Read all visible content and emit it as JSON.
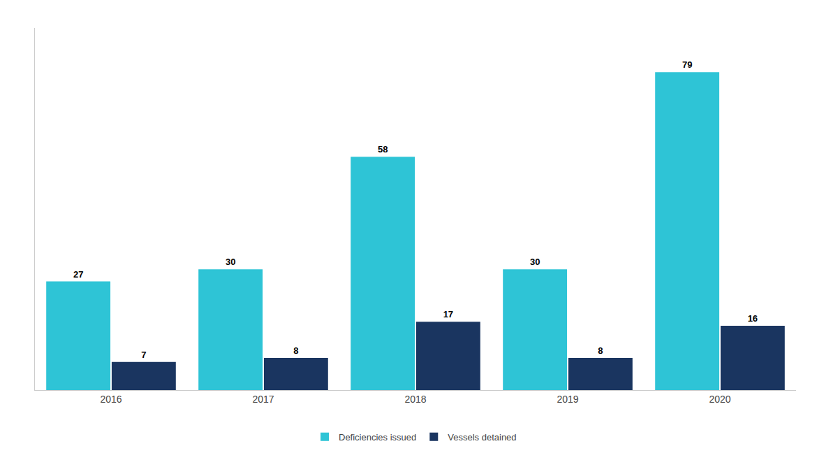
{
  "chart_data": {
    "type": "bar",
    "categories": [
      "2016",
      "2017",
      "2018",
      "2019",
      "2020"
    ],
    "series": [
      {
        "name": "Deficiencies issued",
        "color": "#2EC4D6",
        "values": [
          27,
          30,
          58,
          30,
          79
        ]
      },
      {
        "name": "Vessels detained",
        "color": "#1A3560",
        "values": [
          7,
          8,
          17,
          8,
          16
        ]
      }
    ],
    "ylim": [
      0,
      90
    ],
    "tick_labels": "x",
    "data_labels": true,
    "grid": false,
    "legend": "bottom"
  }
}
